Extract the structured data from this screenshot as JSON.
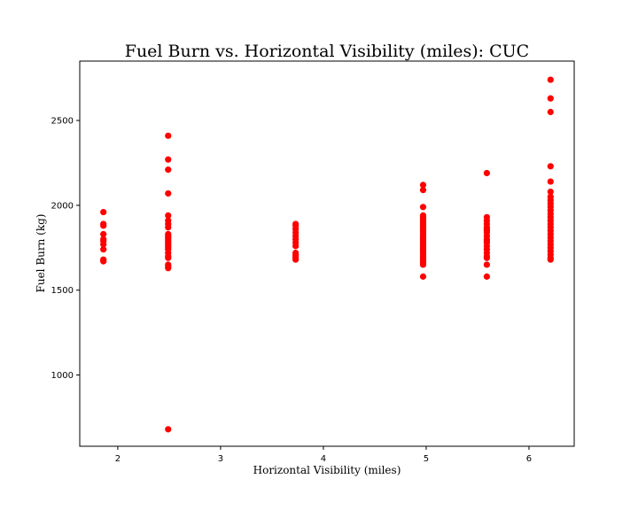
{
  "chart_data": {
    "type": "scatter",
    "title": "Fuel Burn vs. Horizontal Visibility (miles): CUC",
    "xlabel": "Horizontal Visibility (miles)",
    "ylabel": "Fuel Burn (kg)",
    "xlim": [
      1.63,
      6.44
    ],
    "ylim": [
      580,
      2850
    ],
    "xticks": [
      2,
      3,
      4,
      5,
      6
    ],
    "yticks": [
      1000,
      1500,
      2000,
      2500
    ],
    "grid": false,
    "marker_color": "#ff0000",
    "points": [
      {
        "x": 1.86,
        "y": 1960
      },
      {
        "x": 1.86,
        "y": 1890
      },
      {
        "x": 1.86,
        "y": 1880
      },
      {
        "x": 1.86,
        "y": 1830
      },
      {
        "x": 1.86,
        "y": 1800
      },
      {
        "x": 1.86,
        "y": 1790
      },
      {
        "x": 1.86,
        "y": 1770
      },
      {
        "x": 1.86,
        "y": 1740
      },
      {
        "x": 1.86,
        "y": 1680
      },
      {
        "x": 1.86,
        "y": 1670
      },
      {
        "x": 2.49,
        "y": 2410
      },
      {
        "x": 2.49,
        "y": 2270
      },
      {
        "x": 2.49,
        "y": 2210
      },
      {
        "x": 2.49,
        "y": 2070
      },
      {
        "x": 2.49,
        "y": 1940
      },
      {
        "x": 2.49,
        "y": 1910
      },
      {
        "x": 2.49,
        "y": 1890
      },
      {
        "x": 2.49,
        "y": 1870
      },
      {
        "x": 2.49,
        "y": 1830
      },
      {
        "x": 2.49,
        "y": 1820
      },
      {
        "x": 2.49,
        "y": 1810
      },
      {
        "x": 2.49,
        "y": 1800
      },
      {
        "x": 2.49,
        "y": 1790
      },
      {
        "x": 2.49,
        "y": 1780
      },
      {
        "x": 2.49,
        "y": 1770
      },
      {
        "x": 2.49,
        "y": 1760
      },
      {
        "x": 2.49,
        "y": 1750
      },
      {
        "x": 2.49,
        "y": 1740
      },
      {
        "x": 2.49,
        "y": 1720
      },
      {
        "x": 2.49,
        "y": 1700
      },
      {
        "x": 2.49,
        "y": 1690
      },
      {
        "x": 2.49,
        "y": 1650
      },
      {
        "x": 2.49,
        "y": 1640
      },
      {
        "x": 2.49,
        "y": 1630
      },
      {
        "x": 2.49,
        "y": 680
      },
      {
        "x": 3.73,
        "y": 1890
      },
      {
        "x": 3.73,
        "y": 1880
      },
      {
        "x": 3.73,
        "y": 1860
      },
      {
        "x": 3.73,
        "y": 1840
      },
      {
        "x": 3.73,
        "y": 1820
      },
      {
        "x": 3.73,
        "y": 1800
      },
      {
        "x": 3.73,
        "y": 1780
      },
      {
        "x": 3.73,
        "y": 1760
      },
      {
        "x": 3.73,
        "y": 1720
      },
      {
        "x": 3.73,
        "y": 1710
      },
      {
        "x": 3.73,
        "y": 1700
      },
      {
        "x": 3.73,
        "y": 1690
      },
      {
        "x": 3.73,
        "y": 1680
      },
      {
        "x": 4.97,
        "y": 2120
      },
      {
        "x": 4.97,
        "y": 2090
      },
      {
        "x": 4.97,
        "y": 1990
      },
      {
        "x": 4.97,
        "y": 1940
      },
      {
        "x": 4.97,
        "y": 1930
      },
      {
        "x": 4.97,
        "y": 1920
      },
      {
        "x": 4.97,
        "y": 1910
      },
      {
        "x": 4.97,
        "y": 1900
      },
      {
        "x": 4.97,
        "y": 1890
      },
      {
        "x": 4.97,
        "y": 1880
      },
      {
        "x": 4.97,
        "y": 1870
      },
      {
        "x": 4.97,
        "y": 1860
      },
      {
        "x": 4.97,
        "y": 1850
      },
      {
        "x": 4.97,
        "y": 1840
      },
      {
        "x": 4.97,
        "y": 1830
      },
      {
        "x": 4.97,
        "y": 1820
      },
      {
        "x": 4.97,
        "y": 1810
      },
      {
        "x": 4.97,
        "y": 1800
      },
      {
        "x": 4.97,
        "y": 1790
      },
      {
        "x": 4.97,
        "y": 1780
      },
      {
        "x": 4.97,
        "y": 1770
      },
      {
        "x": 4.97,
        "y": 1760
      },
      {
        "x": 4.97,
        "y": 1750
      },
      {
        "x": 4.97,
        "y": 1740
      },
      {
        "x": 4.97,
        "y": 1730
      },
      {
        "x": 4.97,
        "y": 1720
      },
      {
        "x": 4.97,
        "y": 1710
      },
      {
        "x": 4.97,
        "y": 1700
      },
      {
        "x": 4.97,
        "y": 1690
      },
      {
        "x": 4.97,
        "y": 1680
      },
      {
        "x": 4.97,
        "y": 1670
      },
      {
        "x": 4.97,
        "y": 1660
      },
      {
        "x": 4.97,
        "y": 1650
      },
      {
        "x": 4.97,
        "y": 1580
      },
      {
        "x": 5.59,
        "y": 2190
      },
      {
        "x": 5.59,
        "y": 1930
      },
      {
        "x": 5.59,
        "y": 1910
      },
      {
        "x": 5.59,
        "y": 1890
      },
      {
        "x": 5.59,
        "y": 1870
      },
      {
        "x": 5.59,
        "y": 1860
      },
      {
        "x": 5.59,
        "y": 1850
      },
      {
        "x": 5.59,
        "y": 1840
      },
      {
        "x": 5.59,
        "y": 1820
      },
      {
        "x": 5.59,
        "y": 1800
      },
      {
        "x": 5.59,
        "y": 1790
      },
      {
        "x": 5.59,
        "y": 1780
      },
      {
        "x": 5.59,
        "y": 1760
      },
      {
        "x": 5.59,
        "y": 1740
      },
      {
        "x": 5.59,
        "y": 1720
      },
      {
        "x": 5.59,
        "y": 1700
      },
      {
        "x": 5.59,
        "y": 1690
      },
      {
        "x": 5.59,
        "y": 1650
      },
      {
        "x": 5.59,
        "y": 1580
      },
      {
        "x": 6.21,
        "y": 2740
      },
      {
        "x": 6.21,
        "y": 2630
      },
      {
        "x": 6.21,
        "y": 2550
      },
      {
        "x": 6.21,
        "y": 2230
      },
      {
        "x": 6.21,
        "y": 2140
      },
      {
        "x": 6.21,
        "y": 2080
      },
      {
        "x": 6.21,
        "y": 2050
      },
      {
        "x": 6.21,
        "y": 2030
      },
      {
        "x": 6.21,
        "y": 2010
      },
      {
        "x": 6.21,
        "y": 1990
      },
      {
        "x": 6.21,
        "y": 1970
      },
      {
        "x": 6.21,
        "y": 1950
      },
      {
        "x": 6.21,
        "y": 1930
      },
      {
        "x": 6.21,
        "y": 1910
      },
      {
        "x": 6.21,
        "y": 1890
      },
      {
        "x": 6.21,
        "y": 1870
      },
      {
        "x": 6.21,
        "y": 1850
      },
      {
        "x": 6.21,
        "y": 1830
      },
      {
        "x": 6.21,
        "y": 1810
      },
      {
        "x": 6.21,
        "y": 1790
      },
      {
        "x": 6.21,
        "y": 1770
      },
      {
        "x": 6.21,
        "y": 1750
      },
      {
        "x": 6.21,
        "y": 1730
      },
      {
        "x": 6.21,
        "y": 1710
      },
      {
        "x": 6.21,
        "y": 1690
      },
      {
        "x": 6.21,
        "y": 1680
      }
    ]
  }
}
